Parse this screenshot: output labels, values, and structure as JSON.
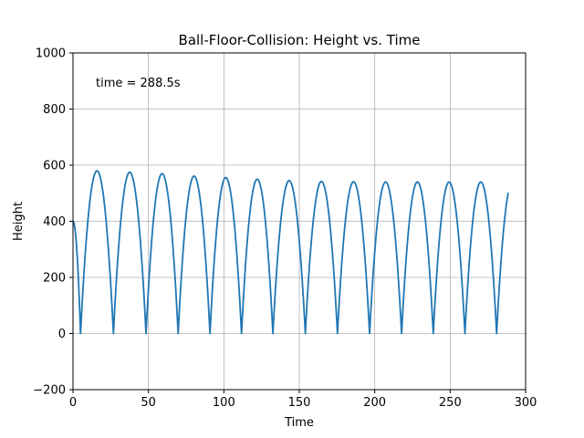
{
  "chart_data": {
    "type": "line",
    "title": "Ball-Floor-Collision: Height vs. Time",
    "xlabel": "Time",
    "ylabel": "Height",
    "xlim": [
      0,
      300
    ],
    "ylim": [
      -200,
      1000
    ],
    "xticks": [
      0,
      50,
      100,
      150,
      200,
      250,
      300
    ],
    "yticks": [
      -200,
      0,
      200,
      400,
      600,
      800,
      1000
    ],
    "grid": true,
    "annotation": "time = 288.5s",
    "line_color": "#1f77b4",
    "series": [
      {
        "initial": {
          "t": 0,
          "h": 400
        },
        "bounces": [
          {
            "t_start": 5.0,
            "t_end": 26.8,
            "peak": 580
          },
          {
            "t_start": 26.8,
            "t_end": 48.4,
            "peak": 575
          },
          {
            "t_start": 48.4,
            "t_end": 69.7,
            "peak": 570
          },
          {
            "t_start": 69.7,
            "t_end": 90.8,
            "peak": 561
          },
          {
            "t_start": 90.8,
            "t_end": 111.7,
            "peak": 556
          },
          {
            "t_start": 111.7,
            "t_end": 132.5,
            "peak": 550
          },
          {
            "t_start": 132.5,
            "t_end": 154.0,
            "peak": 545
          },
          {
            "t_start": 154.0,
            "t_end": 175.3,
            "peak": 542
          },
          {
            "t_start": 175.3,
            "t_end": 196.6,
            "peak": 541
          },
          {
            "t_start": 196.6,
            "t_end": 217.8,
            "peak": 540
          },
          {
            "t_start": 217.8,
            "t_end": 238.8,
            "peak": 540
          },
          {
            "t_start": 238.8,
            "t_end": 259.8,
            "peak": 540
          },
          {
            "t_start": 259.8,
            "t_end": 280.8,
            "peak": 540
          }
        ],
        "final": {
          "t_start": 280.8,
          "t_end": 288.5,
          "h_end": 510,
          "peak_assumed": 540,
          "period_assumed": 21.0
        }
      }
    ]
  }
}
